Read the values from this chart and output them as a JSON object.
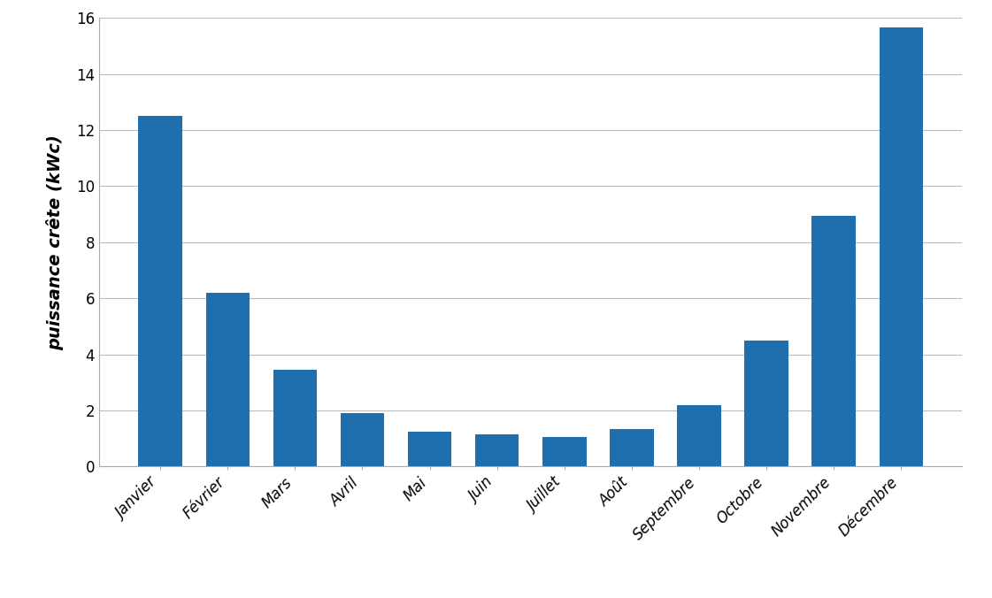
{
  "categories": [
    "Janvier",
    "Février",
    "Mars",
    "Avril",
    "Mai",
    "Juin",
    "Juillet",
    "Août",
    "Septembre",
    "Octobre",
    "Novembre",
    "Décembre"
  ],
  "values": [
    12.5,
    6.2,
    3.45,
    1.9,
    1.25,
    1.15,
    1.05,
    1.35,
    2.2,
    4.5,
    8.95,
    15.65
  ],
  "bar_color": "#1F6FAE",
  "ylabel": "puissance crête (kWc)",
  "ylim": [
    0,
    16
  ],
  "yticks": [
    0,
    2,
    4,
    6,
    8,
    10,
    12,
    14,
    16
  ],
  "grid_color": "#BBBBBB",
  "background_color": "#FFFFFF",
  "tick_label_fontsize": 12,
  "ylabel_fontsize": 14,
  "bar_width": 0.65
}
